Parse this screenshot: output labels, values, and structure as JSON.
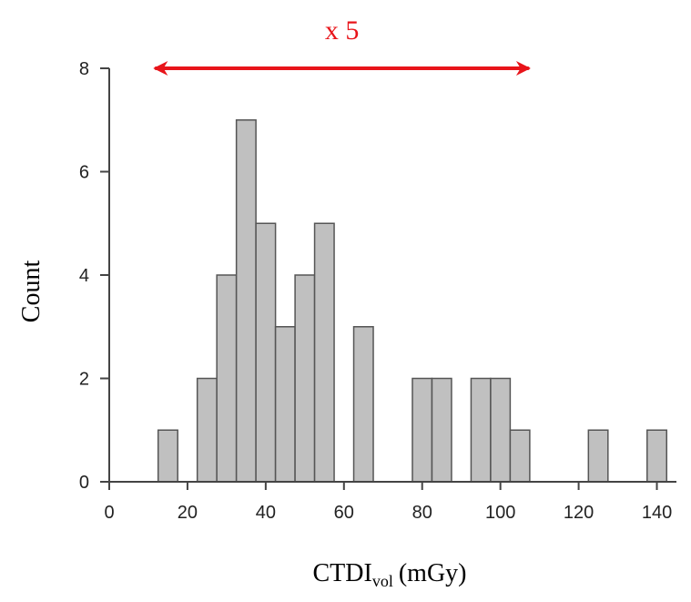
{
  "chart_data": {
    "type": "bar",
    "subtype": "histogram",
    "xlabel": {
      "main": "CTDI",
      "subscript": "vol",
      "unit": "(mGy)"
    },
    "ylabel": "Count",
    "xlim": [
      0,
      145
    ],
    "ylim": [
      0,
      8
    ],
    "x_ticks": [
      0,
      20,
      40,
      60,
      80,
      100,
      120,
      140
    ],
    "y_ticks": [
      0,
      2,
      4,
      6,
      8
    ],
    "bin_width": 5,
    "bins": [
      {
        "x": 15,
        "count": 1
      },
      {
        "x": 25,
        "count": 2
      },
      {
        "x": 30,
        "count": 4
      },
      {
        "x": 35,
        "count": 7
      },
      {
        "x": 40,
        "count": 5
      },
      {
        "x": 45,
        "count": 3
      },
      {
        "x": 50,
        "count": 4
      },
      {
        "x": 55,
        "count": 5
      },
      {
        "x": 65,
        "count": 3
      },
      {
        "x": 80,
        "count": 2
      },
      {
        "x": 85,
        "count": 2
      },
      {
        "x": 95,
        "count": 2
      },
      {
        "x": 100,
        "count": 2
      },
      {
        "x": 105,
        "count": 1
      },
      {
        "x": 125,
        "count": 1
      },
      {
        "x": 140,
        "count": 1
      }
    ],
    "annotation": {
      "text": "x 5",
      "arrow_from": 12,
      "arrow_to": 107,
      "color": "#e8141a"
    },
    "colors": {
      "bar_fill": "#c0c0c0",
      "bar_stroke": "#555555"
    }
  }
}
